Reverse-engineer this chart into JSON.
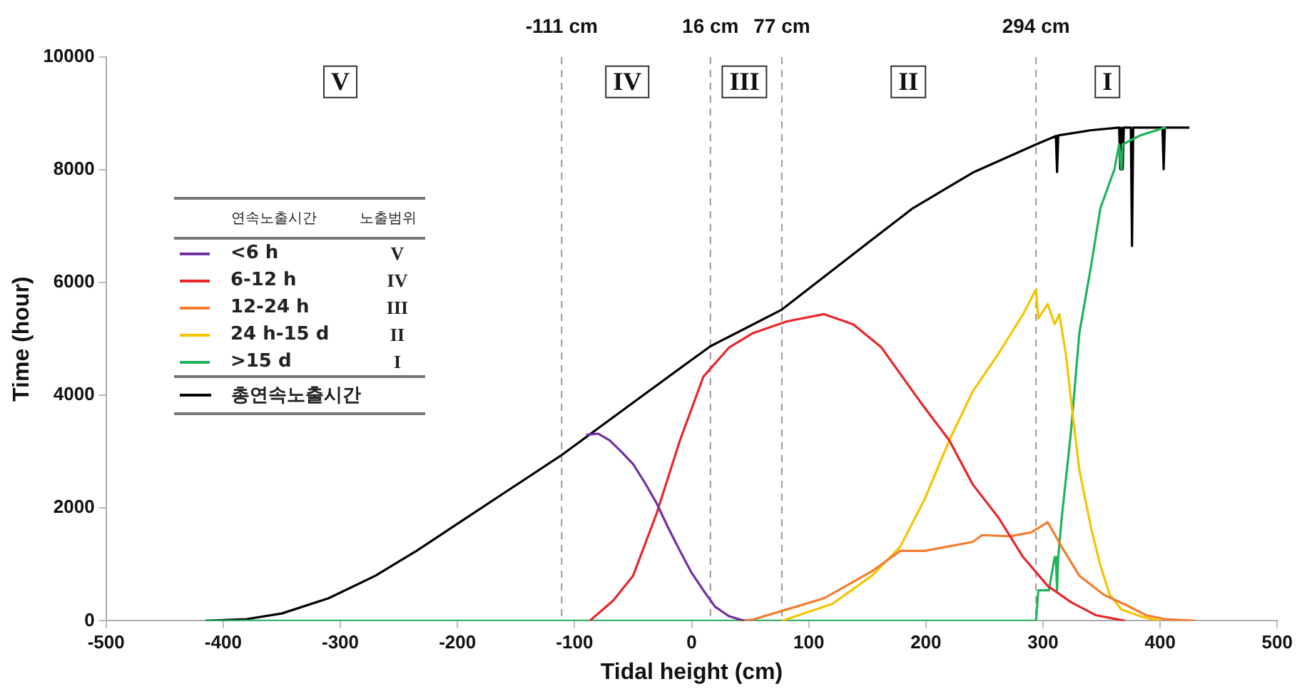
{
  "chart_data": {
    "type": "line",
    "xlabel": "Tidal height (cm)",
    "ylabel": "Time (hour)",
    "xlim": [
      -500,
      500
    ],
    "xticks": [
      -500,
      -400,
      -300,
      -200,
      -100,
      0,
      100,
      200,
      300,
      400,
      500
    ],
    "ylim": [
      0,
      10000
    ],
    "yticks": [
      0,
      2000,
      4000,
      6000,
      8000,
      10000
    ],
    "grid": false,
    "marker": "none",
    "line_style": "solid",
    "legend": "left",
    "legend_title": "연속노출시간  노출범위",
    "series": [
      {
        "name": "<6 h  V",
        "color": "#7030a0",
        "x": [
          -90,
          -80,
          -70,
          -60,
          -50,
          -40,
          -30,
          -20,
          -10,
          0,
          10,
          20,
          32,
          45
        ],
        "values": [
          3300,
          3320,
          3200,
          3000,
          2780,
          2450,
          2090,
          1650,
          1240,
          850,
          540,
          250,
          80,
          0
        ]
      },
      {
        "name": "6-12 h  IV",
        "color": "#e8262a",
        "x": [
          -87,
          -67,
          -50,
          -30,
          -10,
          10,
          32,
          52,
          81,
          113,
          138,
          162,
          195,
          220,
          240,
          262,
          283,
          304,
          324,
          345,
          370
        ],
        "values": [
          0,
          360,
          800,
          1900,
          3200,
          4330,
          4850,
          5100,
          5310,
          5440,
          5260,
          4850,
          3890,
          3200,
          2420,
          1830,
          1130,
          620,
          330,
          100,
          0
        ]
      },
      {
        "name": "12-24 h  III",
        "color": "#f47c30",
        "x": [
          40,
          52,
          81,
          113,
          154,
          178,
          199,
          240,
          248,
          272,
          290,
          304,
          316,
          331,
          352,
          371,
          388,
          404,
          430
        ],
        "values": [
          0,
          20,
          200,
          400,
          880,
          1240,
          1240,
          1400,
          1520,
          1500,
          1570,
          1750,
          1310,
          800,
          460,
          280,
          100,
          30,
          0
        ]
      },
      {
        "name": "24 h-15 d  II",
        "color": "#f5c400",
        "x": [
          77,
          120,
          154,
          178,
          199,
          220,
          240,
          262,
          283,
          294,
          296,
          304,
          310,
          314,
          320,
          324,
          331,
          341,
          349,
          357,
          367,
          383,
          400
        ],
        "values": [
          0,
          300,
          800,
          1310,
          2160,
          3200,
          4070,
          4740,
          5440,
          5880,
          5360,
          5620,
          5260,
          5440,
          4660,
          3890,
          2680,
          1650,
          980,
          460,
          200,
          80,
          0
        ]
      },
      {
        "name": ">15 d  I",
        "color": "#1fb35a",
        "x": [
          -415,
          294,
          296,
          305,
          310,
          311,
          312,
          313,
          316,
          324,
          331,
          341,
          349,
          361,
          365,
          367,
          368,
          383,
          403,
          405
        ],
        "values": [
          0,
          0,
          540,
          540,
          1130,
          1130,
          540,
          1130,
          1830,
          3380,
          5100,
          6290,
          7320,
          8010,
          8450,
          8000,
          8450,
          8610,
          8740,
          8750
        ]
      },
      {
        "name": "총연속노출시간",
        "color": "#000000",
        "x": [
          -415,
          -380,
          -350,
          -310,
          -270,
          -235,
          -200,
          -160,
          -111,
          -50,
          0,
          16,
          77,
          152,
          189,
          240,
          294,
          311,
          312,
          313,
          340,
          360,
          365,
          366,
          367,
          368,
          369,
          375,
          376,
          377,
          402,
          403,
          404,
          425
        ],
        "values": [
          0,
          30,
          130,
          400,
          800,
          1240,
          1720,
          2270,
          2940,
          3870,
          4630,
          4870,
          5520,
          6730,
          7320,
          7950,
          8450,
          8600,
          7960,
          8610,
          8700,
          8740,
          8750,
          8010,
          8750,
          8010,
          8750,
          8750,
          6650,
          8750,
          8750,
          8010,
          8750,
          8750
        ]
      }
    ],
    "ref_lines": [
      {
        "axis": "x",
        "value": -111,
        "label": "-111 cm",
        "color": "#999999",
        "line_style": "dashed"
      },
      {
        "axis": "x",
        "value": 16,
        "label": "16 cm",
        "color": "#999999",
        "line_style": "dashed"
      },
      {
        "axis": "x",
        "value": 77,
        "label": "77 cm",
        "color": "#999999",
        "line_style": "dashed"
      },
      {
        "axis": "x",
        "value": 294,
        "label": "294 cm",
        "color": "#999999",
        "line_style": "dashed"
      }
    ],
    "annotations": [
      {
        "text": "V",
        "x": -300,
        "y": 9560
      },
      {
        "text": "IV",
        "x": -55,
        "y": 9560
      },
      {
        "text": "III",
        "x": 45,
        "y": 9560
      },
      {
        "text": "II",
        "x": 185,
        "y": 9560
      },
      {
        "text": "I",
        "x": 355,
        "y": 9560
      }
    ]
  }
}
